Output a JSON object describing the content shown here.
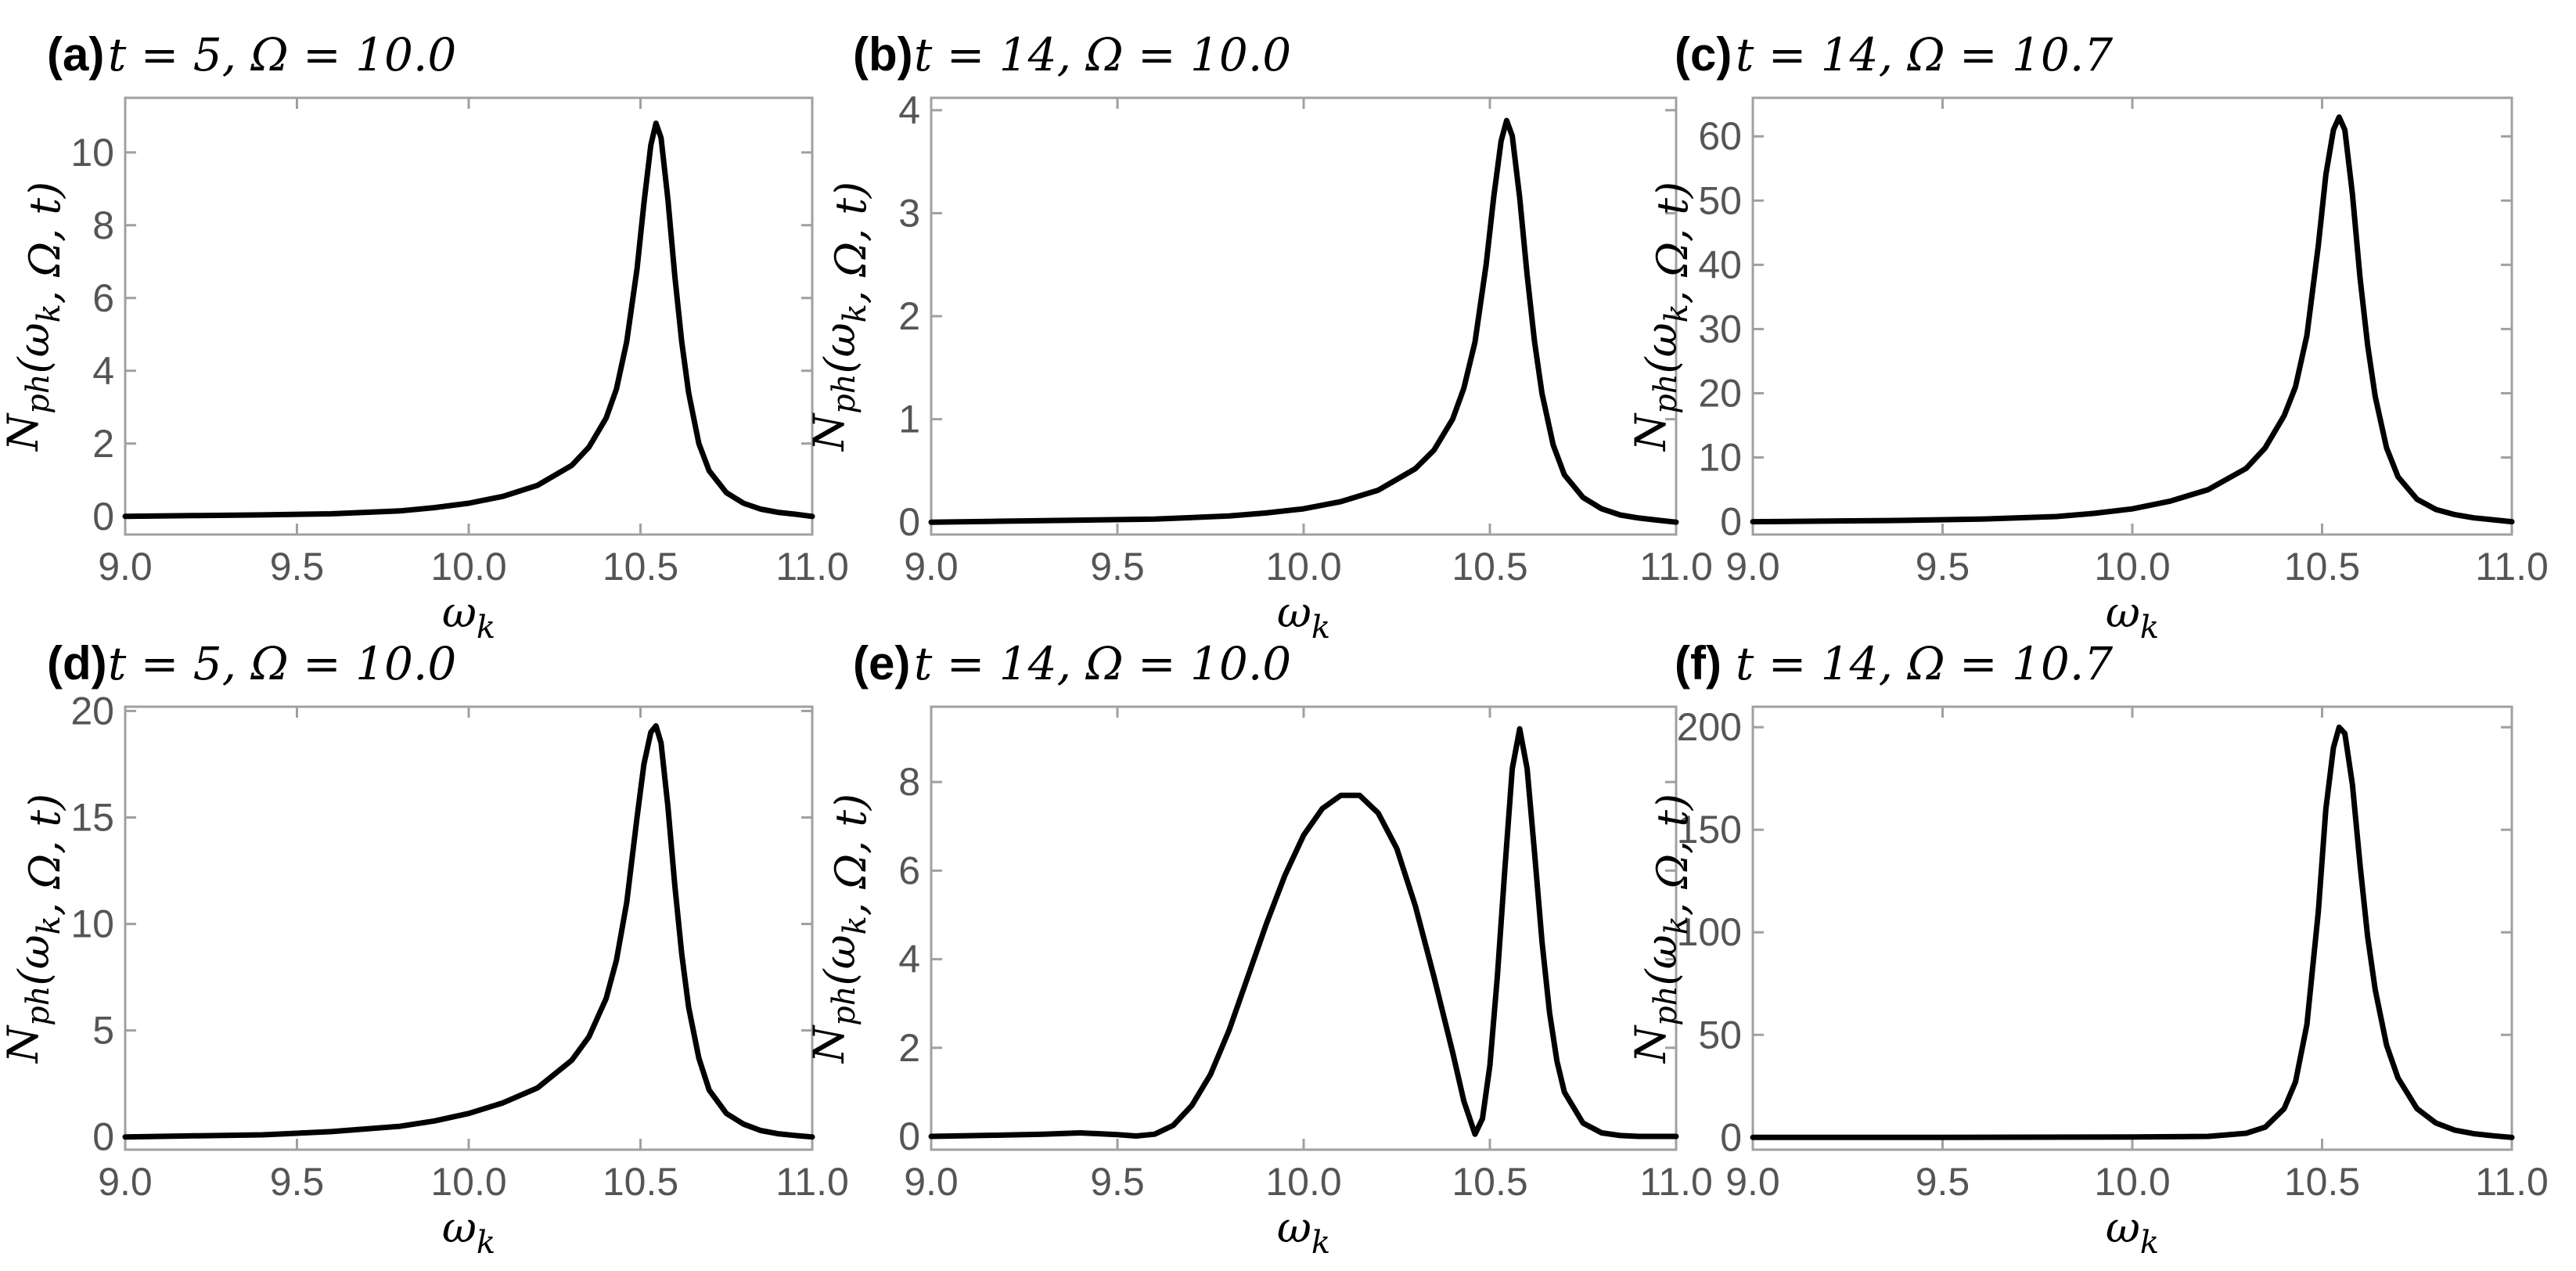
{
  "chart_data": [
    {
      "panel": "(a)",
      "subtitle": "t = 5, Ω = 10.0",
      "type": "line",
      "xlabel": "ωk",
      "ylabel": "Nph(ωk, Ω, t)",
      "xlim": [
        9.0,
        11.0
      ],
      "ylim": [
        -0.5,
        11.5
      ],
      "xticks": [
        "9.0",
        "9.5",
        "10.0",
        "10.5",
        "11.0"
      ],
      "yticks": [
        "0",
        "2",
        "4",
        "6",
        "8",
        "10"
      ],
      "series": [
        {
          "name": "Nph",
          "x": [
            9.0,
            9.2,
            9.4,
            9.6,
            9.8,
            9.9,
            10.0,
            10.1,
            10.2,
            10.3,
            10.35,
            10.4,
            10.43,
            10.46,
            10.49,
            10.51,
            10.53,
            10.545,
            10.56,
            10.58,
            10.6,
            10.62,
            10.64,
            10.67,
            10.7,
            10.75,
            10.8,
            10.85,
            10.9,
            10.95,
            11.0
          ],
          "y": [
            0.0,
            0.02,
            0.04,
            0.07,
            0.15,
            0.24,
            0.36,
            0.55,
            0.85,
            1.4,
            1.9,
            2.7,
            3.5,
            4.8,
            6.8,
            8.6,
            10.2,
            10.8,
            10.4,
            8.7,
            6.6,
            4.8,
            3.4,
            2.0,
            1.25,
            0.65,
            0.36,
            0.2,
            0.11,
            0.06,
            0.0
          ]
        }
      ]
    },
    {
      "panel": "(b)",
      "subtitle": "t = 14, Ω = 10.0",
      "type": "line",
      "xlabel": "ωk",
      "ylabel": "Nph(ωk, Ω, t)",
      "xlim": [
        9.0,
        11.0
      ],
      "ylim": [
        -0.12,
        4.12
      ],
      "xticks": [
        "9.0",
        "9.5",
        "10.0",
        "10.5",
        "11.0"
      ],
      "yticks": [
        "0",
        "1",
        "2",
        "3",
        "4"
      ],
      "series": [
        {
          "name": "Nph",
          "x": [
            9.0,
            9.2,
            9.4,
            9.6,
            9.8,
            9.9,
            10.0,
            10.1,
            10.2,
            10.3,
            10.35,
            10.4,
            10.43,
            10.46,
            10.49,
            10.51,
            10.53,
            10.545,
            10.56,
            10.58,
            10.6,
            10.62,
            10.64,
            10.67,
            10.7,
            10.75,
            10.8,
            10.85,
            10.9,
            10.95,
            11.0
          ],
          "y": [
            0.0,
            0.01,
            0.02,
            0.03,
            0.06,
            0.09,
            0.13,
            0.2,
            0.31,
            0.52,
            0.7,
            1.0,
            1.3,
            1.75,
            2.5,
            3.15,
            3.7,
            3.9,
            3.75,
            3.15,
            2.4,
            1.75,
            1.25,
            0.75,
            0.46,
            0.24,
            0.13,
            0.07,
            0.04,
            0.02,
            0.0
          ]
        }
      ]
    },
    {
      "panel": "(c)",
      "subtitle": "t = 14, Ω = 10.7",
      "type": "line",
      "xlabel": "ωk",
      "ylabel": "Nph(ωk, Ω, t)",
      "xlim": [
        9.0,
        11.0
      ],
      "ylim": [
        -2.0,
        66.0
      ],
      "xticks": [
        "9.0",
        "9.5",
        "10.0",
        "10.5",
        "11.0"
      ],
      "yticks": [
        "0",
        "10",
        "20",
        "30",
        "40",
        "50",
        "60"
      ],
      "series": [
        {
          "name": "Nph",
          "x": [
            9.0,
            9.2,
            9.4,
            9.6,
            9.8,
            9.9,
            10.0,
            10.1,
            10.2,
            10.3,
            10.35,
            10.4,
            10.43,
            10.46,
            10.49,
            10.51,
            10.53,
            10.545,
            10.56,
            10.58,
            10.6,
            10.62,
            10.64,
            10.67,
            10.7,
            10.75,
            10.8,
            10.85,
            10.9,
            10.95,
            11.0
          ],
          "y": [
            0.0,
            0.1,
            0.2,
            0.4,
            0.8,
            1.3,
            2.0,
            3.2,
            5.0,
            8.3,
            11.5,
            16.5,
            21.0,
            29.0,
            43.0,
            54.0,
            61.0,
            63.0,
            61.0,
            51.0,
            38.0,
            27.5,
            19.5,
            11.5,
            7.0,
            3.5,
            1.9,
            1.1,
            0.6,
            0.3,
            0.0
          ]
        }
      ]
    },
    {
      "panel": "(d)",
      "subtitle": "t = 5, Ω = 10.0",
      "type": "line",
      "xlabel": "ωk",
      "ylabel": "Nph(ωk, Ω, t)",
      "xlim": [
        9.0,
        11.0
      ],
      "ylim": [
        -0.6,
        20.2
      ],
      "xticks": [
        "9.0",
        "9.5",
        "10.0",
        "10.5",
        "11.0"
      ],
      "yticks": [
        "0",
        "5",
        "10",
        "15",
        "20"
      ],
      "series": [
        {
          "name": "Nph",
          "x": [
            9.0,
            9.2,
            9.4,
            9.6,
            9.8,
            9.9,
            10.0,
            10.1,
            10.2,
            10.3,
            10.35,
            10.4,
            10.43,
            10.46,
            10.49,
            10.51,
            10.53,
            10.545,
            10.56,
            10.58,
            10.6,
            10.62,
            10.64,
            10.67,
            10.7,
            10.75,
            10.8,
            10.85,
            10.9,
            10.95,
            11.0
          ],
          "y": [
            0.0,
            0.05,
            0.1,
            0.25,
            0.5,
            0.75,
            1.1,
            1.6,
            2.3,
            3.6,
            4.7,
            6.5,
            8.3,
            11.0,
            15.0,
            17.5,
            19.0,
            19.3,
            18.5,
            15.5,
            11.8,
            8.6,
            6.1,
            3.7,
            2.2,
            1.1,
            0.6,
            0.3,
            0.15,
            0.07,
            0.0
          ]
        }
      ]
    },
    {
      "panel": "(e)",
      "subtitle": "t = 14, Ω = 10.0",
      "type": "line",
      "xlabel": "ωk",
      "ylabel": "Nph(ωk, Ω, t)",
      "xlim": [
        9.0,
        11.0
      ],
      "ylim": [
        -0.3,
        9.7
      ],
      "xticks": [
        "9.0",
        "9.5",
        "10.0",
        "10.5",
        "11.0"
      ],
      "yticks": [
        "0",
        "2",
        "4",
        "6",
        "8"
      ],
      "series": [
        {
          "name": "Nph",
          "x": [
            9.0,
            9.2,
            9.3,
            9.4,
            9.5,
            9.55,
            9.6,
            9.65,
            9.7,
            9.75,
            9.8,
            9.85,
            9.9,
            9.95,
            10.0,
            10.05,
            10.1,
            10.15,
            10.2,
            10.25,
            10.3,
            10.35,
            10.4,
            10.43,
            10.46,
            10.48,
            10.5,
            10.52,
            10.54,
            10.56,
            10.58,
            10.6,
            10.62,
            10.64,
            10.66,
            10.68,
            10.7,
            10.75,
            10.8,
            10.85,
            10.9,
            11.0
          ],
          "y": [
            0.0,
            0.03,
            0.05,
            0.08,
            0.04,
            0.01,
            0.05,
            0.25,
            0.7,
            1.4,
            2.4,
            3.6,
            4.8,
            5.9,
            6.8,
            7.4,
            7.7,
            7.7,
            7.3,
            6.5,
            5.2,
            3.6,
            1.9,
            0.8,
            0.05,
            0.4,
            1.6,
            3.6,
            6.0,
            8.3,
            9.2,
            8.3,
            6.4,
            4.4,
            2.8,
            1.7,
            1.0,
            0.3,
            0.08,
            0.02,
            0.0,
            0.0
          ]
        }
      ]
    },
    {
      "panel": "(f)",
      "subtitle": "t = 14, Ω = 10.7",
      "type": "line",
      "xlabel": "ωk",
      "ylabel": "Nph(ωk, Ω, t)",
      "xlim": [
        9.0,
        11.0
      ],
      "ylim": [
        -6.0,
        210.0
      ],
      "xticks": [
        "9.0",
        "9.5",
        "10.0",
        "10.5",
        "11.0"
      ],
      "yticks": [
        "0",
        "50",
        "100",
        "150",
        "200"
      ],
      "series": [
        {
          "name": "Nph",
          "x": [
            9.0,
            9.5,
            10.0,
            10.2,
            10.3,
            10.35,
            10.4,
            10.43,
            10.46,
            10.49,
            10.51,
            10.53,
            10.545,
            10.56,
            10.58,
            10.6,
            10.62,
            10.64,
            10.67,
            10.7,
            10.75,
            10.8,
            10.85,
            10.9,
            10.95,
            11.0
          ],
          "y": [
            0.0,
            0.0,
            0.2,
            0.5,
            2.0,
            5.0,
            14.0,
            27.0,
            55.0,
            110.0,
            160.0,
            190.0,
            200.0,
            197.0,
            172.0,
            133.0,
            98.0,
            72.0,
            45.0,
            29.0,
            14.0,
            7.0,
            3.5,
            1.8,
            0.8,
            0.0
          ]
        }
      ]
    }
  ]
}
